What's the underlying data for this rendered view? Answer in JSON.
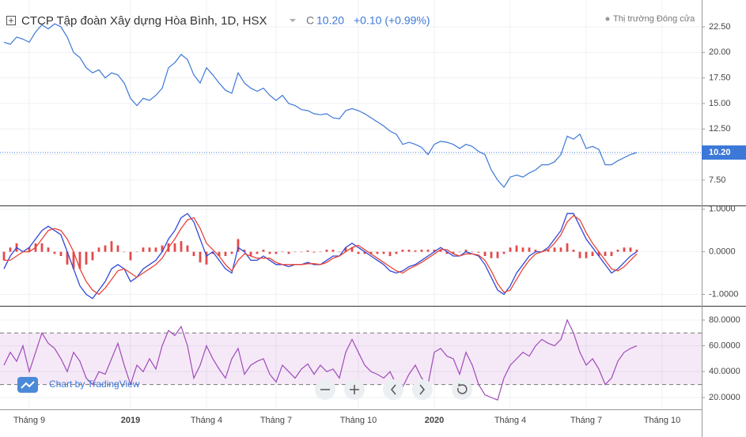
{
  "header": {
    "title": "CTCP Tập đoàn Xây dựng Hòa Bình, 1D, HSX",
    "close_prefix": "C",
    "close": "10.20",
    "change": "+0.10 (+0.99%)",
    "market_status": "Thị trường Đóng cửa"
  },
  "watermark": "Chart by TradingView",
  "chart_data": [
    {
      "type": "line",
      "color": "#3c78d8",
      "grid": true,
      "categories": [
        null,
        null,
        null,
        null,
        "Tháng 9",
        null,
        null,
        null,
        null,
        null,
        null,
        null,
        null,
        null,
        null,
        null,
        null,
        null,
        null,
        null,
        "2019",
        null,
        null,
        null,
        null,
        null,
        null,
        null,
        null,
        null,
        null,
        null,
        "Tháng 4",
        null,
        null,
        null,
        null,
        null,
        null,
        null,
        null,
        null,
        null,
        "Tháng 7",
        null,
        null,
        null,
        null,
        null,
        null,
        null,
        null,
        null,
        null,
        null,
        null,
        "Tháng 10",
        null,
        null,
        null,
        null,
        null,
        null,
        null,
        null,
        null,
        null,
        null,
        "2020",
        null,
        null,
        null,
        null,
        null,
        null,
        null,
        null,
        null,
        null,
        null,
        "Tháng 4",
        null,
        null,
        null,
        null,
        null,
        null,
        null,
        null,
        null,
        null,
        null,
        "Tháng 7",
        null,
        null,
        null,
        null,
        null,
        null,
        null,
        null,
        null,
        null,
        null,
        "Tháng 10",
        null,
        null,
        null,
        null,
        null
      ],
      "values": [
        21.0,
        20.8,
        21.5,
        21.3,
        21.0,
        22.0,
        22.7,
        22.3,
        22.8,
        22.5,
        21.5,
        20.0,
        19.5,
        18.5,
        18.0,
        18.3,
        17.5,
        18.0,
        17.8,
        17.0,
        15.5,
        14.8,
        15.5,
        15.3,
        15.8,
        16.5,
        18.5,
        19.0,
        19.8,
        19.3,
        17.8,
        17.0,
        18.5,
        17.8,
        17.0,
        16.3,
        16.0,
        18.0,
        17.0,
        16.5,
        16.2,
        16.5,
        15.8,
        15.3,
        15.8,
        15.0,
        14.8,
        14.4,
        14.3,
        14.0,
        13.9,
        14.0,
        13.6,
        13.5,
        14.3,
        14.5,
        14.3,
        14.0,
        13.6,
        13.2,
        12.8,
        12.3,
        12.0,
        11.0,
        11.2,
        11.0,
        10.7,
        10.0,
        11.0,
        11.3,
        11.2,
        11.0,
        10.6,
        11.0,
        10.8,
        10.3,
        10.0,
        8.5,
        7.5,
        6.8,
        7.8,
        8.0,
        7.8,
        8.2,
        8.5,
        9.0,
        9.0,
        9.3,
        10.0,
        11.8,
        11.5,
        12.0,
        10.6,
        10.8,
        10.5,
        9.0,
        9.0,
        9.4,
        9.7,
        10.0,
        10.2,
        null,
        null,
        null,
        null,
        null,
        null,
        null,
        null,
        null
      ],
      "ylim": [
        5.02,
        25.13
      ],
      "yticks": [
        {
          "value": 7.5,
          "label": "7.50"
        },
        {
          "value": 10,
          "label": "10.00"
        },
        {
          "value": 12.5,
          "label": "12.50"
        },
        {
          "value": 15,
          "label": "15.00"
        },
        {
          "value": 17.5,
          "label": "17.50"
        },
        {
          "value": 20,
          "label": "20.00"
        },
        {
          "value": 22.5,
          "label": "22.50"
        }
      ]
    },
    {
      "type": "macd",
      "grid": true,
      "series": [
        {
          "color": "#3048d8",
          "values": [
            -0.4,
            -0.1,
            0.1,
            0.0,
            0.1,
            0.3,
            0.5,
            0.6,
            0.5,
            0.4,
            0.0,
            -0.4,
            -0.8,
            -1.0,
            -1.1,
            -0.9,
            -0.7,
            -0.4,
            -0.3,
            -0.4,
            -0.7,
            -0.6,
            -0.4,
            -0.3,
            -0.2,
            0.0,
            0.3,
            0.5,
            0.8,
            0.9,
            0.7,
            0.3,
            -0.1,
            0.0,
            -0.2,
            -0.4,
            -0.5,
            0.1,
            0.0,
            -0.2,
            -0.2,
            -0.1,
            -0.2,
            -0.3,
            -0.3,
            -0.35,
            -0.3,
            -0.3,
            -0.25,
            -0.3,
            -0.3,
            -0.2,
            -0.1,
            -0.1,
            0.1,
            0.2,
            0.1,
            0.0,
            -0.1,
            -0.2,
            -0.3,
            -0.45,
            -0.5,
            -0.45,
            -0.35,
            -0.3,
            -0.2,
            -0.1,
            0.0,
            0.1,
            0.0,
            -0.1,
            -0.1,
            0.0,
            -0.05,
            -0.1,
            -0.3,
            -0.6,
            -0.9,
            -1.0,
            -0.8,
            -0.5,
            -0.3,
            -0.1,
            0.0,
            0.0,
            0.1,
            0.3,
            0.5,
            0.9,
            0.9,
            0.6,
            0.3,
            0.1,
            -0.1,
            -0.3,
            -0.5,
            -0.4,
            -0.25,
            -0.1,
            0.0,
            null,
            null,
            null,
            null,
            null,
            null,
            null,
            null,
            null
          ]
        },
        {
          "color": "#e8443a",
          "values": [
            -0.2,
            -0.2,
            -0.1,
            0.0,
            0.0,
            0.1,
            0.3,
            0.5,
            0.55,
            0.5,
            0.3,
            0.0,
            -0.4,
            -0.7,
            -0.9,
            -1.0,
            -0.85,
            -0.65,
            -0.45,
            -0.4,
            -0.5,
            -0.6,
            -0.5,
            -0.4,
            -0.3,
            -0.15,
            0.1,
            0.3,
            0.55,
            0.75,
            0.8,
            0.55,
            0.2,
            0.05,
            -0.1,
            -0.3,
            -0.45,
            -0.2,
            -0.05,
            -0.1,
            -0.15,
            -0.15,
            -0.15,
            -0.25,
            -0.3,
            -0.3,
            -0.3,
            -0.3,
            -0.28,
            -0.28,
            -0.3,
            -0.25,
            -0.15,
            -0.1,
            0.0,
            0.1,
            0.15,
            0.05,
            -0.05,
            -0.15,
            -0.25,
            -0.35,
            -0.45,
            -0.5,
            -0.4,
            -0.33,
            -0.25,
            -0.15,
            -0.05,
            0.05,
            0.05,
            -0.05,
            -0.1,
            -0.05,
            -0.05,
            -0.08,
            -0.2,
            -0.45,
            -0.75,
            -0.95,
            -0.9,
            -0.65,
            -0.4,
            -0.2,
            -0.05,
            0.0,
            0.05,
            0.2,
            0.4,
            0.7,
            0.85,
            0.75,
            0.45,
            0.2,
            0.0,
            -0.2,
            -0.4,
            -0.45,
            -0.35,
            -0.2,
            -0.05,
            null,
            null,
            null,
            null,
            null,
            null,
            null,
            null,
            null
          ]
        }
      ],
      "histogram": {
        "color": "#e34a4a",
        "values": [
          -0.2,
          0.1,
          0.2,
          0.0,
          0.1,
          0.2,
          0.2,
          0.1,
          -0.05,
          -0.1,
          -0.3,
          -0.4,
          -0.4,
          -0.3,
          -0.2,
          0.1,
          0.15,
          0.25,
          0.15,
          0.0,
          -0.2,
          0.0,
          0.1,
          0.1,
          0.1,
          0.15,
          0.2,
          0.2,
          0.25,
          0.15,
          -0.1,
          -0.25,
          -0.3,
          -0.05,
          -0.1,
          -0.1,
          -0.05,
          0.3,
          0.05,
          -0.1,
          -0.05,
          0.05,
          -0.05,
          -0.05,
          0.0,
          -0.05,
          0.0,
          0.0,
          0.03,
          -0.02,
          0.0,
          0.05,
          0.05,
          0.0,
          0.1,
          0.1,
          -0.05,
          -0.05,
          -0.05,
          -0.05,
          -0.05,
          -0.1,
          -0.05,
          0.05,
          0.05,
          0.03,
          0.05,
          0.05,
          0.05,
          0.05,
          -0.05,
          -0.05,
          0.0,
          0.05,
          0.0,
          -0.02,
          -0.1,
          -0.15,
          -0.15,
          -0.05,
          0.1,
          0.15,
          0.1,
          0.1,
          0.05,
          0.0,
          0.05,
          0.1,
          0.1,
          0.2,
          0.05,
          -0.15,
          -0.15,
          -0.1,
          -0.1,
          -0.1,
          -0.1,
          0.05,
          0.1,
          0.1,
          0.05,
          null,
          null,
          null,
          null,
          null,
          null,
          null,
          null,
          null
        ]
      },
      "ylim": [
        -1.27,
        1.07
      ],
      "yticks": [
        {
          "value": -1,
          "label": "-1.0000"
        },
        {
          "value": 0,
          "label": "0.0000"
        },
        {
          "value": 1,
          "label": "1.0000"
        }
      ]
    },
    {
      "type": "rsi",
      "color": "#a04aba",
      "band": [
        30,
        70
      ],
      "band_color": "#9c27b0",
      "grid": true,
      "values": [
        45,
        55,
        48,
        60,
        40,
        55,
        70,
        62,
        58,
        50,
        40,
        55,
        48,
        35,
        30,
        40,
        38,
        50,
        62,
        45,
        30,
        45,
        40,
        50,
        42,
        60,
        72,
        68,
        75,
        60,
        35,
        45,
        60,
        50,
        42,
        35,
        50,
        58,
        38,
        45,
        48,
        50,
        38,
        32,
        45,
        40,
        35,
        42,
        46,
        38,
        45,
        40,
        42,
        35,
        55,
        65,
        55,
        45,
        40,
        38,
        35,
        40,
        30,
        28,
        38,
        45,
        35,
        30,
        55,
        58,
        52,
        50,
        38,
        55,
        45,
        30,
        22,
        20,
        18,
        35,
        45,
        50,
        55,
        52,
        60,
        65,
        62,
        60,
        65,
        80,
        70,
        55,
        45,
        50,
        42,
        30,
        35,
        48,
        55,
        58,
        60,
        null,
        null,
        null,
        null,
        null,
        null,
        null,
        null,
        null
      ],
      "ylim": [
        10.8,
        90.4
      ],
      "yticks": [
        {
          "value": 20,
          "label": "20.0000"
        },
        {
          "value": 40,
          "label": "40.0000"
        },
        {
          "value": 60,
          "label": "60.0000"
        },
        {
          "value": 80,
          "label": "80.0000"
        }
      ]
    }
  ]
}
